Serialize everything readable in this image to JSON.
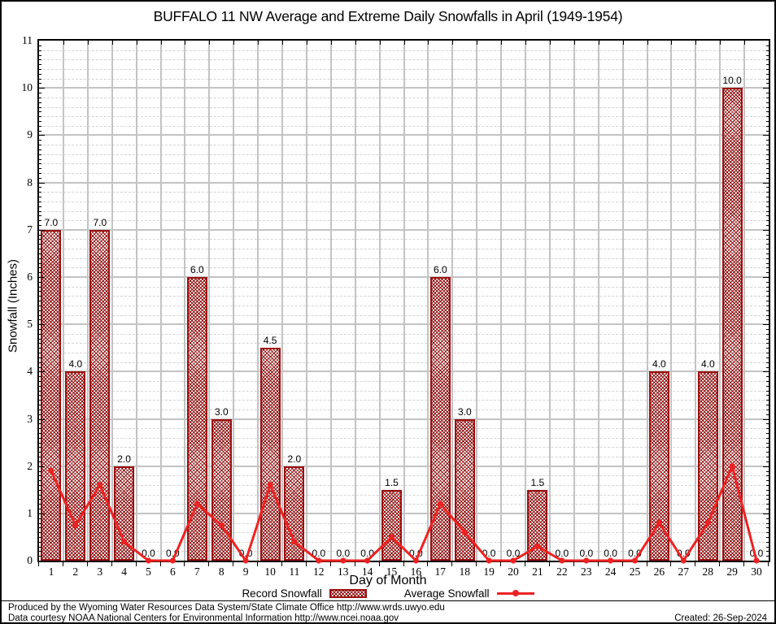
{
  "title": "BUFFALO 11 NW Average and Extreme Daily Snowfalls in April (1949-1954)",
  "chart_data": {
    "type": "bar",
    "categories": [
      1,
      2,
      3,
      4,
      5,
      6,
      7,
      8,
      9,
      10,
      11,
      12,
      13,
      14,
      15,
      16,
      17,
      18,
      19,
      20,
      21,
      22,
      23,
      24,
      25,
      26,
      27,
      28,
      29,
      30
    ],
    "series": [
      {
        "name": "Record Snowfall",
        "type": "bar",
        "values": [
          7.0,
          4.0,
          7.0,
          2.0,
          0.0,
          0.0,
          6.0,
          3.0,
          0.0,
          4.5,
          2.0,
          0.0,
          0.0,
          0.0,
          1.5,
          0.0,
          6.0,
          3.0,
          0.0,
          0.0,
          1.5,
          0.0,
          0.0,
          0.0,
          0.0,
          4.0,
          0.0,
          4.0,
          10.0,
          0.0
        ]
      },
      {
        "name": "Average Snowfall",
        "type": "line",
        "values": [
          1.9,
          0.75,
          1.6,
          0.4,
          0.0,
          0.0,
          1.2,
          0.75,
          0.0,
          1.6,
          0.4,
          0.0,
          0.0,
          0.0,
          0.5,
          0.0,
          1.2,
          0.6,
          0.0,
          0.0,
          0.3,
          0.0,
          0.0,
          0.0,
          0.0,
          0.8,
          0.0,
          0.8,
          2.0,
          0.0
        ]
      }
    ],
    "bar_labels": [
      "7.0",
      "4.0",
      "7.0",
      "2.0",
      "0.0",
      "0.0",
      "6.0",
      "3.0",
      "0.0",
      "4.5",
      "2.0",
      "0.0",
      "0.0",
      "0.0",
      "1.5",
      "0.0",
      "6.0",
      "3.0",
      "0.0",
      "0.0",
      "1.5",
      "0.0",
      "0.0",
      "0.0",
      "0.0",
      "4.0",
      "0.0",
      "4.0",
      "10.0",
      "0.0"
    ],
    "xlabel": "Day of Month",
    "ylabel": "Snowfall (Inches)",
    "ylim": [
      0,
      11
    ],
    "yticks": [
      "0",
      "1",
      "2",
      "3",
      "4",
      "5",
      "6",
      "7",
      "8",
      "9",
      "10",
      "11"
    ],
    "grid": "major solid gray, minor dashed horizontal every 0.2",
    "legend_position": "bottom"
  },
  "legend": {
    "record_label": "Record Snowfall",
    "average_label": "Average Snowfall"
  },
  "footer": {
    "line1": "Produced by the Wyoming Water Resources Data System/State Climate Office http://www.wrds.uwyo.edu",
    "line2": "Data courtesy NOAA National Centers for Environmental Information http://www.ncei.noaa.gov",
    "created": "Created: 26-Sep-2024"
  },
  "colors": {
    "bar_edge": "#9b1010",
    "bar_hatch": "#8f0f0f",
    "line": "#ee2222",
    "major_grid": "#c3c3c3",
    "minor_grid": "#d4d4d4",
    "frame": "#000000",
    "label_text": "#000000"
  }
}
